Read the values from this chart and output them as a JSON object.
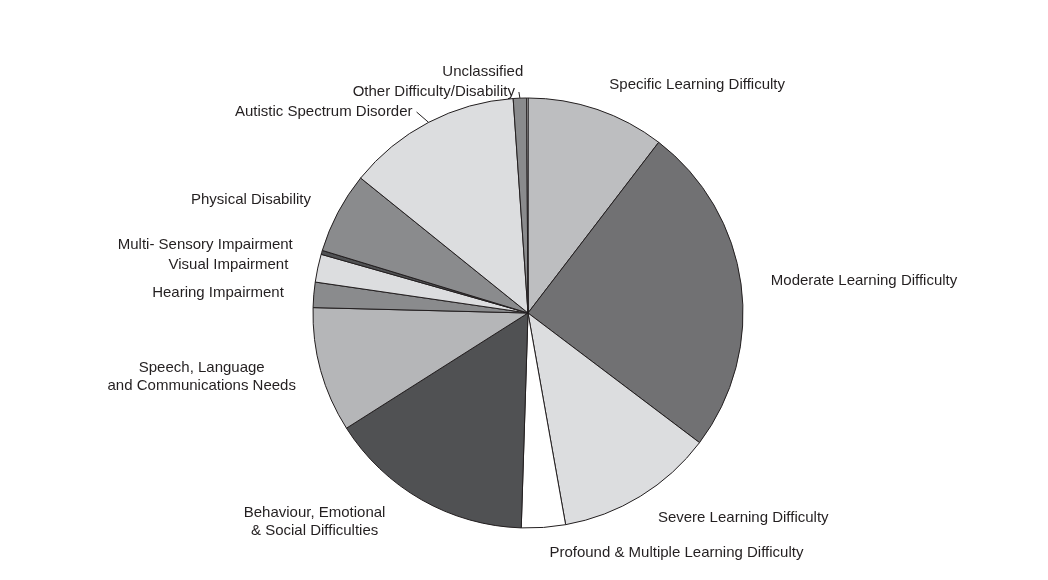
{
  "chart_data": {
    "type": "pie",
    "categories": [
      "Specific Learning Difficulty",
      "Moderate Learning Difficulty",
      "Severe Learning Difficulty",
      "Profound & Multiple Learning Difficulty",
      "Behaviour, Emotional\n& Social Difficulties",
      "Speech, Language\nand Communications Needs",
      "Hearing Impairment",
      "Visual Impairment",
      "Multi- Sensory Impairment",
      "Physical Disability",
      "Autistic Spectrum Disorder",
      "Other Difficulty/Disability",
      "Unclassified"
    ],
    "values": [
      10.4,
      24.9,
      11.9,
      3.3,
      15.5,
      9.4,
      1.9,
      2.1,
      0.3,
      6.1,
      13.1,
      1.0,
      0.1
    ],
    "colors": [
      "#bdbec0",
      "#717173",
      "#dcdddf",
      "#ffffff",
      "#505153",
      "#b5b6b8",
      "#8a8b8d",
      "#dcdddf",
      "#505153",
      "#8a8b8d",
      "#dcdddf",
      "#8a8b8d",
      "#ffffff"
    ]
  }
}
